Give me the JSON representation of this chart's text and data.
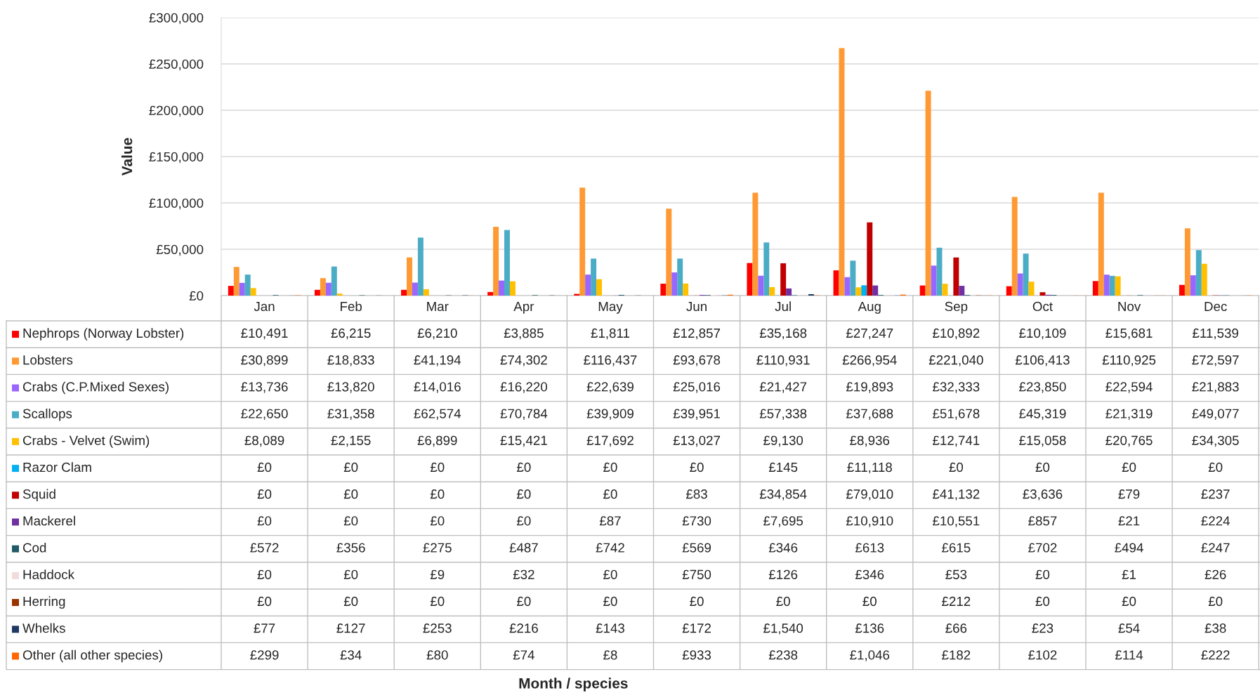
{
  "chart_data": {
    "type": "bar",
    "categories": [
      "Jan",
      "Feb",
      "Mar",
      "Apr",
      "May",
      "Jun",
      "Jul",
      "Aug",
      "Sep",
      "Oct",
      "Nov",
      "Dec"
    ],
    "annotations": [
      "Month / species"
    ],
    "ylabel": "Value",
    "ylim": [
      0,
      300000
    ],
    "yticks": [
      {
        "value": 0,
        "label": "£0"
      },
      {
        "value": 50000,
        "label": "£50,000"
      },
      {
        "value": 100000,
        "label": "£100,000"
      },
      {
        "value": 150000,
        "label": "£150,000"
      },
      {
        "value": 200000,
        "label": "£200,000"
      },
      {
        "value": 250000,
        "label": "£250,000"
      },
      {
        "value": 300000,
        "label": "£300,000"
      }
    ],
    "grid": "y",
    "legend": "left",
    "series": [
      {
        "name": "Nephrops (Norway Lobster)",
        "color": "#ff0000",
        "values": [
          10491,
          6215,
          6210,
          3885,
          1811,
          12857,
          35168,
          27247,
          10892,
          10109,
          15681,
          11539
        ],
        "value_labels": [
          "£10,491",
          "£6,215",
          "£6,210",
          "£3,885",
          "£1,811",
          "£12,857",
          "£35,168",
          "£27,247",
          "£10,892",
          "£10,109",
          "£15,681",
          "£11,539"
        ]
      },
      {
        "name": "Lobsters",
        "color": "#ff9933",
        "values": [
          30899,
          18833,
          41194,
          74302,
          116437,
          93678,
          110931,
          266954,
          221040,
          106413,
          110925,
          72597
        ],
        "value_labels": [
          "£30,899",
          "£18,833",
          "£41,194",
          "£74,302",
          "£116,437",
          "£93,678",
          "£110,931",
          "£266,954",
          "£221,040",
          "£106,413",
          "£110,925",
          "£72,597"
        ]
      },
      {
        "name": "Crabs (C.P.Mixed Sexes)",
        "color": "#9966ff",
        "values": [
          13736,
          13820,
          14016,
          16220,
          22639,
          25016,
          21427,
          19893,
          32333,
          23850,
          22594,
          21883
        ],
        "value_labels": [
          "£13,736",
          "£13,820",
          "£14,016",
          "£16,220",
          "£22,639",
          "£25,016",
          "£21,427",
          "£19,893",
          "£32,333",
          "£23,850",
          "£22,594",
          "£21,883"
        ]
      },
      {
        "name": "Scallops",
        "color": "#4bacc6",
        "values": [
          22650,
          31358,
          62574,
          70784,
          39909,
          39951,
          57338,
          37688,
          51678,
          45319,
          21319,
          49077
        ],
        "value_labels": [
          "£22,650",
          "£31,358",
          "£62,574",
          "£70,784",
          "£39,909",
          "£39,951",
          "£57,338",
          "£37,688",
          "£51,678",
          "£45,319",
          "£21,319",
          "£49,077"
        ]
      },
      {
        "name": "Crabs - Velvet (Swim)",
        "color": "#ffc000",
        "values": [
          8089,
          2155,
          6899,
          15421,
          17692,
          13027,
          9130,
          8936,
          12741,
          15058,
          20765,
          34305
        ],
        "value_labels": [
          "£8,089",
          "£2,155",
          "£6,899",
          "£15,421",
          "£17,692",
          "£13,027",
          "£9,130",
          "£8,936",
          "£12,741",
          "£15,058",
          "£20,765",
          "£34,305"
        ]
      },
      {
        "name": "Razor Clam",
        "color": "#00b0f0",
        "values": [
          0,
          0,
          0,
          0,
          0,
          0,
          145,
          11118,
          0,
          0,
          0,
          0
        ],
        "value_labels": [
          "£0",
          "£0",
          "£0",
          "£0",
          "£0",
          "£0",
          "£145",
          "£11,118",
          "£0",
          "£0",
          "£0",
          "£0"
        ]
      },
      {
        "name": "Squid",
        "color": "#c00000",
        "values": [
          0,
          0,
          0,
          0,
          0,
          83,
          34854,
          79010,
          41132,
          3636,
          79,
          237
        ],
        "value_labels": [
          "£0",
          "£0",
          "£0",
          "£0",
          "£0",
          "£83",
          "£34,854",
          "£79,010",
          "£41,132",
          "£3,636",
          "£79",
          "£237"
        ]
      },
      {
        "name": "Mackerel",
        "color": "#7030a0",
        "values": [
          0,
          0,
          0,
          0,
          87,
          730,
          7695,
          10910,
          10551,
          857,
          21,
          224
        ],
        "value_labels": [
          "£0",
          "£0",
          "£0",
          "£0",
          "£87",
          "£730",
          "£7,695",
          "£10,910",
          "£10,551",
          "£857",
          "£21",
          "£224"
        ]
      },
      {
        "name": "Cod",
        "color": "#215967",
        "values": [
          572,
          356,
          275,
          487,
          742,
          569,
          346,
          613,
          615,
          702,
          494,
          247
        ],
        "value_labels": [
          "£572",
          "£356",
          "£275",
          "£487",
          "£742",
          "£569",
          "£346",
          "£613",
          "£615",
          "£702",
          "£494",
          "£247"
        ]
      },
      {
        "name": "Haddock",
        "color": "#f2dcdb",
        "values": [
          0,
          0,
          9,
          32,
          0,
          750,
          126,
          346,
          53,
          0,
          1,
          26
        ],
        "value_labels": [
          "£0",
          "£0",
          "£9",
          "£32",
          "£0",
          "£750",
          "£126",
          "£346",
          "£53",
          "£0",
          "£1",
          "£26"
        ]
      },
      {
        "name": "Herring",
        "color": "#993300",
        "values": [
          0,
          0,
          0,
          0,
          0,
          0,
          0,
          0,
          212,
          0,
          0,
          0
        ],
        "value_labels": [
          "£0",
          "£0",
          "£0",
          "£0",
          "£0",
          "£0",
          "£0",
          "£0",
          "£212",
          "£0",
          "£0",
          "£0"
        ]
      },
      {
        "name": "Whelks",
        "color": "#1f3864",
        "values": [
          77,
          127,
          253,
          216,
          143,
          172,
          1540,
          136,
          66,
          23,
          54,
          38
        ],
        "value_labels": [
          "£77",
          "£127",
          "£253",
          "£216",
          "£143",
          "£172",
          "£1,540",
          "£136",
          "£66",
          "£23",
          "£54",
          "£38"
        ]
      },
      {
        "name": "Other (all other species)",
        "color": "#ff6600",
        "values": [
          299,
          34,
          80,
          74,
          8,
          933,
          238,
          1046,
          182,
          102,
          114,
          222
        ],
        "value_labels": [
          "£299",
          "£34",
          "£80",
          "£74",
          "£8",
          "£933",
          "£238",
          "£1,046",
          "£182",
          "£102",
          "£114",
          "£222"
        ]
      }
    ]
  }
}
